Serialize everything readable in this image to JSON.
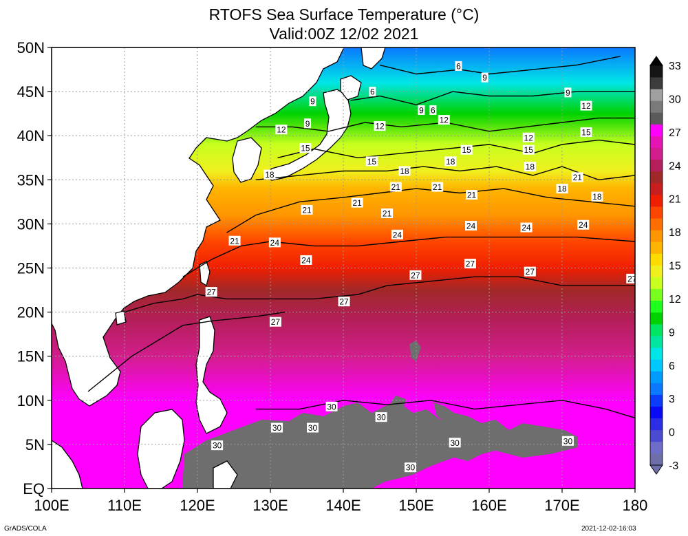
{
  "title": "RTOFS Sea Surface Temperature (°C)",
  "subtitle": "Valid:00Z 12/02 2021",
  "credit": "GrADS/COLA",
  "timestamp": "2021-12-02-16:03",
  "chart_data": {
    "type": "heatmap",
    "title": "RTOFS Sea Surface Temperature (°C)",
    "subtitle": "Valid:00Z 12/02 2021",
    "x_ticks": [
      "100E",
      "110E",
      "120E",
      "130E",
      "140E",
      "150E",
      "160E",
      "170E",
      "180"
    ],
    "y_ticks": [
      "EQ",
      "5N",
      "10N",
      "15N",
      "20N",
      "25N",
      "30N",
      "35N",
      "40N",
      "45N",
      "50N"
    ],
    "xlim": [
      100,
      180
    ],
    "ylim": [
      0,
      50
    ],
    "grid": true,
    "colorbar": {
      "labels": [
        "-3",
        "0",
        "3",
        "6",
        "9",
        "12",
        "15",
        "18",
        "21",
        "24",
        "27",
        "30",
        "33"
      ],
      "min": -3,
      "max": 33,
      "step": 1.5,
      "colors": [
        "#6e6eab",
        "#6e6ec8",
        "#4b4bd2",
        "#2d2de6",
        "#0a0af5",
        "#0a3cfa",
        "#0a78ff",
        "#009bff",
        "#00c8ff",
        "#00e6e6",
        "#00e6a0",
        "#00e664",
        "#00d200",
        "#1eff1e",
        "#78ff1e",
        "#c8ff1e",
        "#f0f01e",
        "#ffdc00",
        "#ffb400",
        "#ff9600",
        "#ff6e00",
        "#ff4600",
        "#f01e00",
        "#c81e1e",
        "#a02828",
        "#b41e5a",
        "#d21e8c",
        "#e614b4",
        "#ff00ff",
        "#5a5a5a",
        "#7a7a7a",
        "#a0a0a0",
        "#3c3c3c",
        "#141414"
      ]
    },
    "contour_labels": [
      {
        "lon": 155.8,
        "lat": 47.9,
        "value": "6"
      },
      {
        "lon": 159.4,
        "lat": 46.6,
        "value": "9"
      },
      {
        "lon": 144.0,
        "lat": 45.0,
        "value": "6"
      },
      {
        "lon": 135.8,
        "lat": 43.9,
        "value": "9"
      },
      {
        "lon": 170.8,
        "lat": 44.9,
        "value": "9"
      },
      {
        "lon": 173.3,
        "lat": 43.4,
        "value": "12"
      },
      {
        "lon": 150.7,
        "lat": 42.9,
        "value": "9"
      },
      {
        "lon": 152.3,
        "lat": 42.9,
        "value": "6"
      },
      {
        "lon": 153.8,
        "lat": 41.8,
        "value": "12"
      },
      {
        "lon": 135.1,
        "lat": 41.4,
        "value": "9"
      },
      {
        "lon": 131.5,
        "lat": 40.7,
        "value": "12"
      },
      {
        "lon": 145.0,
        "lat": 41.1,
        "value": "12"
      },
      {
        "lon": 173.3,
        "lat": 40.4,
        "value": "15"
      },
      {
        "lon": 165.4,
        "lat": 39.8,
        "value": "12"
      },
      {
        "lon": 134.8,
        "lat": 38.6,
        "value": "15"
      },
      {
        "lon": 156.9,
        "lat": 38.4,
        "value": "15"
      },
      {
        "lon": 165.4,
        "lat": 38.4,
        "value": "15"
      },
      {
        "lon": 143.9,
        "lat": 37.1,
        "value": "15"
      },
      {
        "lon": 154.7,
        "lat": 37.1,
        "value": "18"
      },
      {
        "lon": 165.6,
        "lat": 36.5,
        "value": "18"
      },
      {
        "lon": 129.9,
        "lat": 35.6,
        "value": "18"
      },
      {
        "lon": 148.4,
        "lat": 36.0,
        "value": "18"
      },
      {
        "lon": 172.1,
        "lat": 35.3,
        "value": "21"
      },
      {
        "lon": 147.2,
        "lat": 34.2,
        "value": "21"
      },
      {
        "lon": 152.9,
        "lat": 34.2,
        "value": "21"
      },
      {
        "lon": 170.0,
        "lat": 34.0,
        "value": "18"
      },
      {
        "lon": 157.6,
        "lat": 33.3,
        "value": "21"
      },
      {
        "lon": 174.8,
        "lat": 33.1,
        "value": "18"
      },
      {
        "lon": 141.9,
        "lat": 32.4,
        "value": "21"
      },
      {
        "lon": 135.0,
        "lat": 31.6,
        "value": "21"
      },
      {
        "lon": 146.0,
        "lat": 31.2,
        "value": "21"
      },
      {
        "lon": 157.5,
        "lat": 29.8,
        "value": "24"
      },
      {
        "lon": 165.1,
        "lat": 29.6,
        "value": "24"
      },
      {
        "lon": 172.9,
        "lat": 29.9,
        "value": "24"
      },
      {
        "lon": 147.4,
        "lat": 28.8,
        "value": "24"
      },
      {
        "lon": 125.1,
        "lat": 28.1,
        "value": "21"
      },
      {
        "lon": 130.6,
        "lat": 27.9,
        "value": "24"
      },
      {
        "lon": 134.9,
        "lat": 25.9,
        "value": "24"
      },
      {
        "lon": 157.4,
        "lat": 25.5,
        "value": "27"
      },
      {
        "lon": 165.6,
        "lat": 24.6,
        "value": "27"
      },
      {
        "lon": 149.9,
        "lat": 24.2,
        "value": "27"
      },
      {
        "lon": 179.6,
        "lat": 23.8,
        "value": "27"
      },
      {
        "lon": 121.9,
        "lat": 22.3,
        "value": "27"
      },
      {
        "lon": 140.1,
        "lat": 21.2,
        "value": "27"
      },
      {
        "lon": 130.7,
        "lat": 18.9,
        "value": "27"
      },
      {
        "lon": 138.4,
        "lat": 9.3,
        "value": "30"
      },
      {
        "lon": 145.2,
        "lat": 8.1,
        "value": "30"
      },
      {
        "lon": 130.9,
        "lat": 6.9,
        "value": "30"
      },
      {
        "lon": 135.8,
        "lat": 6.9,
        "value": "30"
      },
      {
        "lon": 170.8,
        "lat": 5.4,
        "value": "30"
      },
      {
        "lon": 155.3,
        "lat": 5.2,
        "value": "30"
      },
      {
        "lon": 122.7,
        "lat": 4.9,
        "value": "30"
      },
      {
        "lon": 149.2,
        "lat": 2.4,
        "value": "30"
      }
    ],
    "contour_lines": [
      {
        "value": 6,
        "points": [
          [
            145,
            48
          ],
          [
            150,
            47
          ],
          [
            156,
            47.5
          ],
          [
            160,
            47
          ],
          [
            166,
            47.5
          ],
          [
            172,
            48
          ],
          [
            178,
            49
          ]
        ]
      },
      {
        "value": 9,
        "points": [
          [
            141,
            44
          ],
          [
            145,
            44.5
          ],
          [
            150,
            43.5
          ],
          [
            155,
            45
          ],
          [
            160,
            44.5
          ],
          [
            166,
            44.5
          ],
          [
            172,
            45
          ],
          [
            180,
            45
          ]
        ]
      },
      {
        "value": 12,
        "points": [
          [
            128,
            41
          ],
          [
            133,
            41
          ],
          [
            138,
            40.5
          ],
          [
            143,
            41.5
          ],
          [
            148,
            41
          ],
          [
            154,
            41.5
          ],
          [
            160,
            40.5
          ],
          [
            165,
            41
          ],
          [
            170,
            41.5
          ],
          [
            175,
            42
          ],
          [
            180,
            42
          ]
        ]
      },
      {
        "value": 15,
        "points": [
          [
            131,
            37.5
          ],
          [
            136,
            38.5
          ],
          [
            142,
            37.5
          ],
          [
            148,
            38
          ],
          [
            154,
            38.5
          ],
          [
            160,
            39
          ],
          [
            166,
            38
          ],
          [
            170,
            39
          ],
          [
            175,
            39.5
          ],
          [
            180,
            39
          ]
        ]
      },
      {
        "value": 18,
        "points": [
          [
            128,
            35
          ],
          [
            134,
            35.5
          ],
          [
            140,
            36
          ],
          [
            146,
            36
          ],
          [
            151,
            36.5
          ],
          [
            156,
            36
          ],
          [
            161,
            36.5
          ],
          [
            166,
            35.5
          ],
          [
            170,
            36.5
          ],
          [
            175,
            35
          ],
          [
            180,
            35.5
          ]
        ]
      },
      {
        "value": 21,
        "points": [
          [
            124,
            29
          ],
          [
            128,
            31
          ],
          [
            134,
            32.5
          ],
          [
            140,
            33
          ],
          [
            145,
            33.5
          ],
          [
            150,
            34
          ],
          [
            156,
            33.5
          ],
          [
            162,
            34
          ],
          [
            168,
            33
          ],
          [
            174,
            32.5
          ],
          [
            180,
            32
          ]
        ]
      },
      {
        "value": 24,
        "points": [
          [
            118,
            24
          ],
          [
            122,
            26
          ],
          [
            126,
            27.5
          ],
          [
            130,
            28
          ],
          [
            136,
            27.5
          ],
          [
            142,
            27.5
          ],
          [
            148,
            28
          ],
          [
            154,
            28.5
          ],
          [
            160,
            28.5
          ],
          [
            166,
            28.5
          ],
          [
            172,
            28.5
          ],
          [
            180,
            28
          ]
        ]
      },
      {
        "value": 27,
        "points": [
          [
            110,
            20
          ],
          [
            114,
            21
          ],
          [
            118,
            21.5
          ],
          [
            120,
            22
          ],
          [
            124,
            21.5
          ],
          [
            130,
            21.5
          ],
          [
            136,
            21.5
          ],
          [
            142,
            22
          ],
          [
            146,
            23
          ],
          [
            152,
            23.5
          ],
          [
            158,
            24
          ],
          [
            164,
            24
          ],
          [
            170,
            23
          ],
          [
            176,
            23
          ],
          [
            180,
            23
          ]
        ]
      },
      {
        "value": 27,
        "points": [
          [
            105,
            11
          ],
          [
            108,
            13
          ],
          [
            111,
            15
          ],
          [
            114,
            16.5
          ],
          [
            118,
            18.5
          ],
          [
            122,
            19
          ],
          [
            128,
            19.5
          ],
          [
            132,
            20
          ]
        ]
      },
      {
        "value": 30,
        "points": [
          [
            128,
            9
          ],
          [
            134,
            9
          ],
          [
            140,
            10
          ],
          [
            146,
            9.5
          ],
          [
            152,
            10
          ],
          [
            158,
            9
          ],
          [
            164,
            9.5
          ],
          [
            170,
            10
          ],
          [
            176,
            9
          ],
          [
            180,
            8
          ]
        ]
      }
    ],
    "land_labels": []
  }
}
